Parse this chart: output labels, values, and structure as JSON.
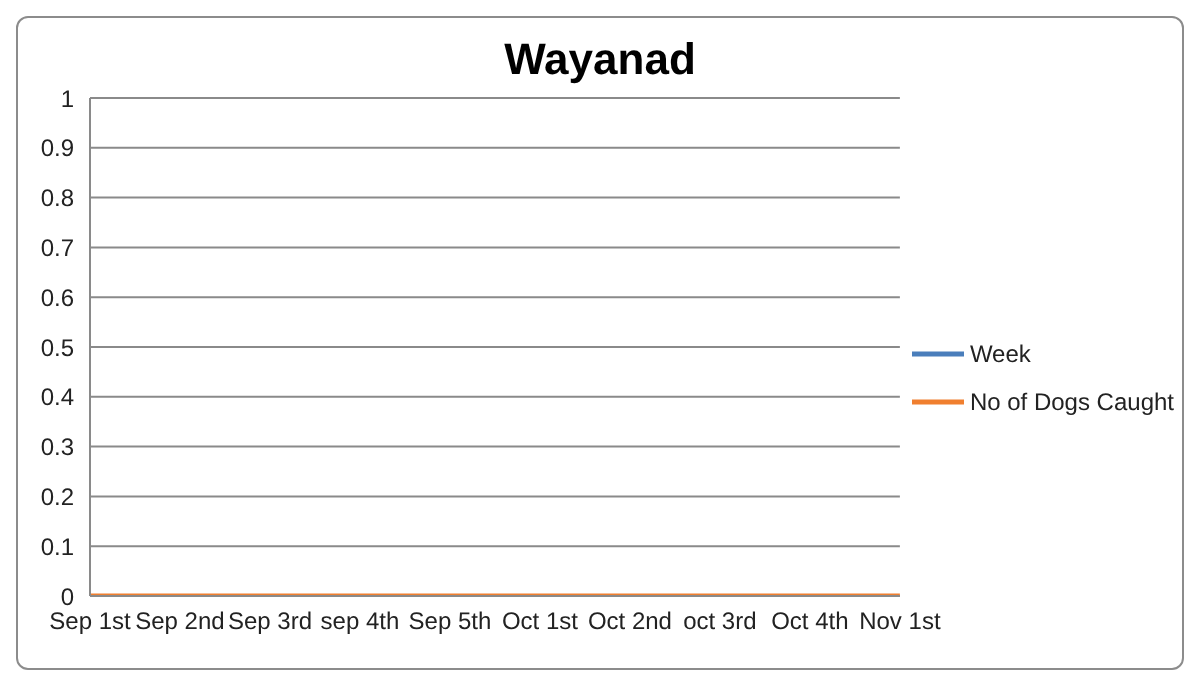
{
  "chart_data": {
    "type": "line",
    "title": "Wayanad",
    "categories": [
      "Sep 1st",
      "Sep 2nd",
      "Sep 3rd",
      "sep 4th",
      "Sep 5th",
      "Oct 1st",
      "Oct 2nd",
      "oct 3rd",
      "Oct 4th",
      "Nov 1st"
    ],
    "series": [
      {
        "name": "Week",
        "color": "#4a7ebb",
        "values": [
          null,
          null,
          null,
          null,
          null,
          null,
          null,
          null,
          null,
          null
        ]
      },
      {
        "name": "No of Dogs Caught",
        "color": "#f07f2f",
        "values": [
          0,
          0,
          0,
          0,
          0,
          0,
          0,
          0,
          0,
          0
        ]
      }
    ],
    "ylim": [
      0,
      1
    ],
    "yticks": [
      0,
      0.1,
      0.2,
      0.3,
      0.4,
      0.5,
      0.6,
      0.7,
      0.8,
      0.9,
      1
    ],
    "grid": "y",
    "legend": "right",
    "marker": "none",
    "line_style": "solid"
  }
}
